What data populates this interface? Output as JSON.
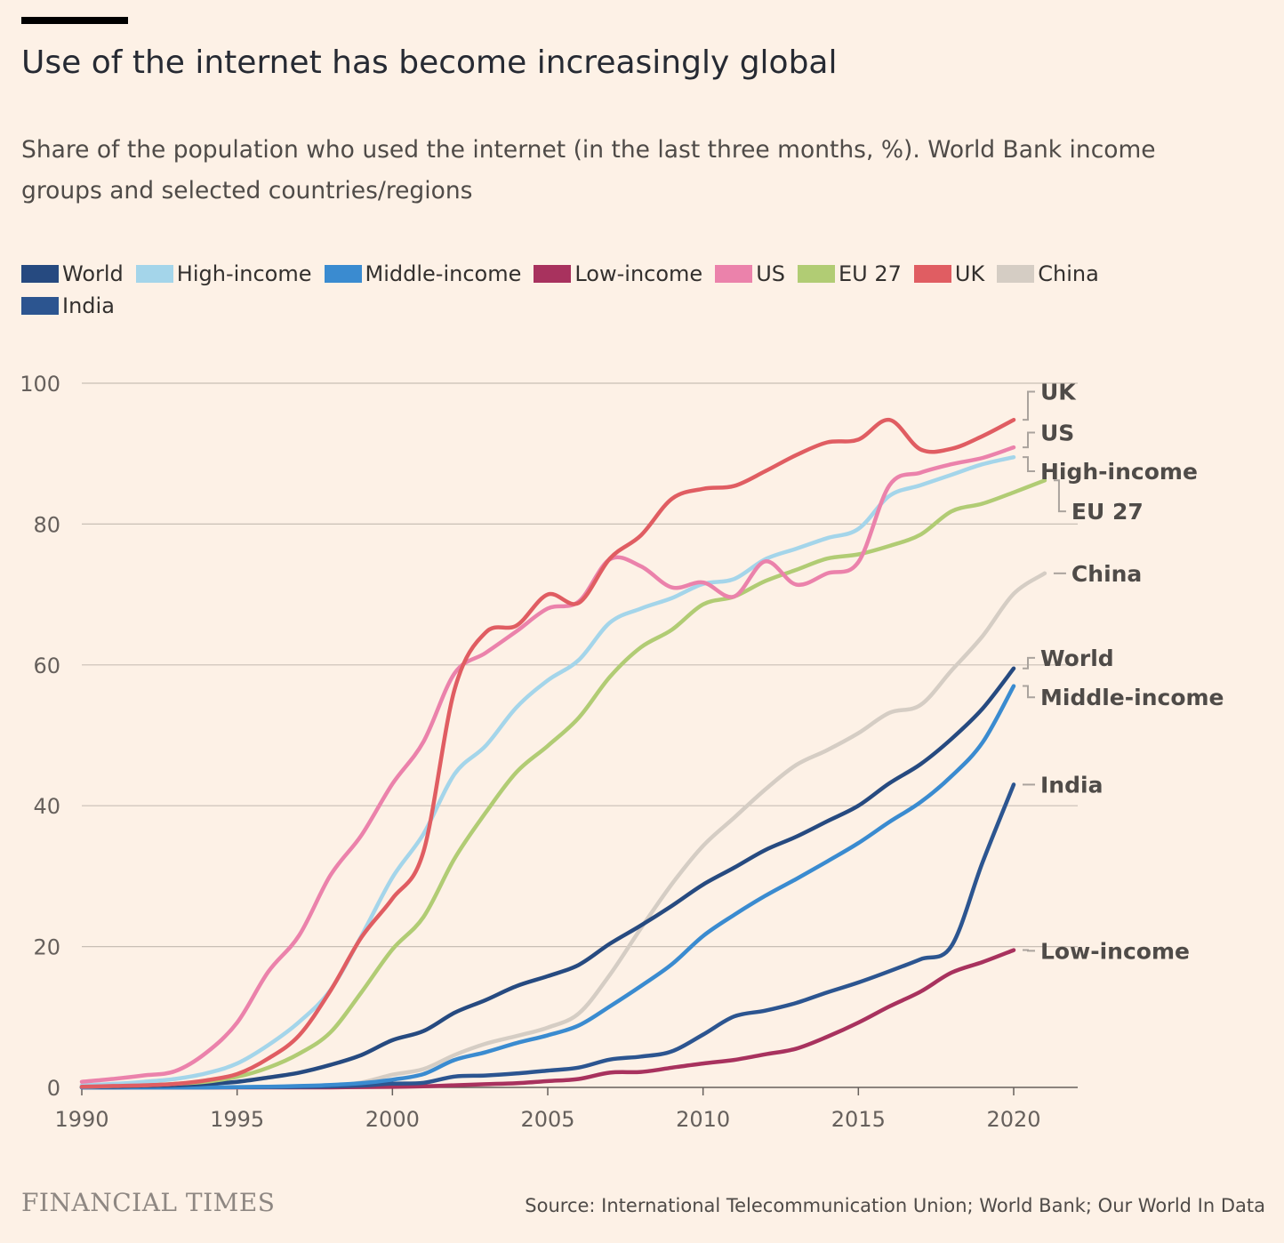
{
  "header": {
    "title": "Use of the internet has become increasingly global",
    "subtitle": "Share of the population who used the internet (in the last three months, %). World Bank income groups and selected countries/regions"
  },
  "footer": {
    "brand": "FINANCIAL TIMES",
    "source": "Source: International Telecommunication Union; World Bank; Our World In Data"
  },
  "chart_data": {
    "type": "line",
    "title": "Use of the internet has become increasingly global",
    "subtitle": "Share of the population who used the internet (in the last three months, %). World Bank income groups and selected countries/regions",
    "xlabel": "",
    "ylabel": "",
    "xlim": [
      1990,
      2022
    ],
    "ylim": [
      0,
      100
    ],
    "x_ticks": [
      1990,
      1995,
      2000,
      2005,
      2010,
      2015,
      2020
    ],
    "y_ticks": [
      0,
      20,
      40,
      60,
      80,
      100
    ],
    "grid": "horizontal",
    "legend_position": "top-left",
    "label_color": "#4f4b48",
    "series": [
      {
        "name": "World",
        "color": "#264a80",
        "label": "World",
        "x": [
          1990,
          1991,
          1992,
          1993,
          1994,
          1995,
          1996,
          1997,
          1998,
          1999,
          2000,
          2001,
          2002,
          2003,
          2004,
          2005,
          2006,
          2007,
          2008,
          2009,
          2010,
          2011,
          2012,
          2013,
          2014,
          2015,
          2016,
          2017,
          2018,
          2019,
          2020
        ],
        "y": [
          0.1,
          0.1,
          0.2,
          0.3,
          0.5,
          0.8,
          1.4,
          2.1,
          3.2,
          4.6,
          6.7,
          8.0,
          10.6,
          12.4,
          14.4,
          15.8,
          17.4,
          20.4,
          23.0,
          25.8,
          28.8,
          31.2,
          33.7,
          35.6,
          37.8,
          40.0,
          43.2,
          45.9,
          49.5,
          53.8,
          59.5
        ]
      },
      {
        "name": "High-income",
        "color": "#a4d5ea",
        "label": "High-income",
        "x": [
          1990,
          1991,
          1992,
          1993,
          1994,
          1995,
          1996,
          1997,
          1998,
          1999,
          2000,
          2001,
          2002,
          2003,
          2004,
          2005,
          2006,
          2007,
          2008,
          2009,
          2010,
          2011,
          2012,
          2013,
          2014,
          2015,
          2016,
          2017,
          2018,
          2019,
          2020
        ],
        "y": [
          0.3,
          0.5,
          0.8,
          1.2,
          2.0,
          3.4,
          6.0,
          9.3,
          13.8,
          21.5,
          29.8,
          36.0,
          44.5,
          48.5,
          54.0,
          57.8,
          60.7,
          66.0,
          68.0,
          69.5,
          71.5,
          72.2,
          75.0,
          76.5,
          78.0,
          79.3,
          84.0,
          85.5,
          87.0,
          88.5,
          89.5
        ]
      },
      {
        "name": "Middle-income",
        "color": "#3a8bd0",
        "label": "Middle-income",
        "x": [
          1990,
          1991,
          1992,
          1993,
          1994,
          1995,
          1996,
          1997,
          1998,
          1999,
          2000,
          2001,
          2002,
          2003,
          2004,
          2005,
          2006,
          2007,
          2008,
          2009,
          2010,
          2011,
          2012,
          2013,
          2014,
          2015,
          2016,
          2017,
          2018,
          2019,
          2020
        ],
        "y": [
          0.0,
          0.0,
          0.0,
          0.0,
          0.0,
          0.05,
          0.1,
          0.2,
          0.35,
          0.6,
          1.1,
          1.9,
          3.9,
          5.0,
          6.3,
          7.4,
          8.8,
          11.5,
          14.4,
          17.5,
          21.5,
          24.5,
          27.2,
          29.6,
          32.1,
          34.7,
          37.7,
          40.5,
          44.2,
          49.0,
          57.0
        ]
      },
      {
        "name": "Low-income",
        "color": "#a8325e",
        "label": "Low-income",
        "x": [
          1990,
          1991,
          1992,
          1993,
          1994,
          1995,
          1996,
          1997,
          1998,
          1999,
          2000,
          2001,
          2002,
          2003,
          2004,
          2005,
          2006,
          2007,
          2008,
          2009,
          2010,
          2011,
          2012,
          2013,
          2014,
          2015,
          2016,
          2017,
          2018,
          2019,
          2020
        ],
        "y": [
          0.0,
          0.0,
          0.0,
          0.0,
          0.0,
          0.0,
          0.0,
          0.0,
          0.0,
          0.05,
          0.08,
          0.15,
          0.3,
          0.45,
          0.6,
          0.9,
          1.2,
          2.1,
          2.2,
          2.8,
          3.4,
          3.9,
          4.7,
          5.5,
          7.2,
          9.2,
          11.5,
          13.6,
          16.3,
          17.8,
          19.5
        ]
      },
      {
        "name": "US",
        "color": "#eb82ab",
        "label": "US",
        "x": [
          1990,
          1991,
          1992,
          1993,
          1994,
          1995,
          1996,
          1997,
          1998,
          1999,
          2000,
          2001,
          2002,
          2003,
          2004,
          2005,
          2006,
          2007,
          2008,
          2009,
          2010,
          2011,
          2012,
          2013,
          2014,
          2015,
          2016,
          2017,
          2018,
          2019,
          2020
        ],
        "y": [
          0.8,
          1.2,
          1.7,
          2.3,
          4.9,
          9.2,
          16.4,
          21.6,
          30.1,
          35.8,
          43.1,
          49.1,
          58.8,
          61.7,
          64.8,
          68.0,
          69.0,
          75.0,
          74.0,
          71.0,
          71.7,
          69.7,
          74.7,
          71.4,
          73.0,
          74.6,
          85.5,
          87.3,
          88.5,
          89.4,
          90.9
        ]
      },
      {
        "name": "EU 27",
        "color": "#b1cc74",
        "label": "EU 27",
        "x": [
          1990,
          1991,
          1992,
          1993,
          1994,
          1995,
          1996,
          1997,
          1998,
          1999,
          2000,
          2001,
          2002,
          2003,
          2004,
          2005,
          2006,
          2007,
          2008,
          2009,
          2010,
          2011,
          2012,
          2013,
          2014,
          2015,
          2016,
          2017,
          2018,
          2019,
          2020,
          2021
        ],
        "y": [
          0.1,
          0.2,
          0.3,
          0.5,
          0.8,
          1.5,
          2.8,
          4.8,
          7.8,
          13.5,
          19.6,
          24.2,
          32.5,
          39.0,
          44.8,
          48.5,
          52.5,
          58.3,
          62.5,
          65.0,
          68.6,
          69.7,
          71.9,
          73.5,
          75.1,
          75.7,
          76.9,
          78.5,
          81.8,
          82.9,
          84.5,
          86.2
        ]
      },
      {
        "name": "UK",
        "color": "#e05d62",
        "label": "UK",
        "x": [
          1990,
          1991,
          1992,
          1993,
          1994,
          1995,
          1996,
          1997,
          1998,
          1999,
          2000,
          2001,
          2002,
          2003,
          2004,
          2005,
          2006,
          2007,
          2008,
          2009,
          2010,
          2011,
          2012,
          2013,
          2014,
          2015,
          2016,
          2017,
          2018,
          2019,
          2020
        ],
        "y": [
          0.1,
          0.2,
          0.3,
          0.5,
          1.0,
          1.9,
          4.1,
          7.4,
          13.7,
          21.3,
          26.8,
          33.5,
          56.5,
          64.6,
          65.6,
          70.0,
          68.8,
          75.1,
          78.4,
          83.6,
          85.0,
          85.4,
          87.5,
          89.8,
          91.6,
          92.0,
          94.8,
          90.6,
          90.7,
          92.5,
          94.8
        ]
      },
      {
        "name": "China",
        "color": "#d5cdc4",
        "label": "China",
        "x": [
          1990,
          1991,
          1992,
          1993,
          1994,
          1995,
          1996,
          1997,
          1998,
          1999,
          2000,
          2001,
          2002,
          2003,
          2004,
          2005,
          2006,
          2007,
          2008,
          2009,
          2010,
          2011,
          2012,
          2013,
          2014,
          2015,
          2016,
          2017,
          2018,
          2019,
          2020,
          2021
        ],
        "y": [
          0.0,
          0.0,
          0.0,
          0.0,
          0.0,
          0.0,
          0.01,
          0.03,
          0.2,
          0.7,
          1.8,
          2.6,
          4.6,
          6.2,
          7.3,
          8.5,
          10.5,
          16.0,
          22.6,
          28.9,
          34.3,
          38.3,
          42.3,
          45.8,
          47.9,
          50.3,
          53.2,
          54.3,
          59.2,
          64.1,
          70.1,
          73.0
        ]
      },
      {
        "name": "India",
        "color": "#2c5590",
        "label": "India",
        "x": [
          1990,
          1991,
          1992,
          1993,
          1994,
          1995,
          1996,
          1997,
          1998,
          1999,
          2000,
          2001,
          2002,
          2003,
          2004,
          2005,
          2006,
          2007,
          2008,
          2009,
          2010,
          2011,
          2012,
          2013,
          2014,
          2015,
          2016,
          2017,
          2018,
          2019,
          2020
        ],
        "y": [
          0.0,
          0.0,
          0.0,
          0.0,
          0.0,
          0.03,
          0.05,
          0.07,
          0.14,
          0.27,
          0.53,
          0.66,
          1.54,
          1.69,
          1.98,
          2.39,
          2.81,
          3.95,
          4.38,
          5.12,
          7.5,
          10.07,
          10.9,
          12.0,
          13.5,
          14.9,
          16.5,
          18.2,
          20.1,
          32.0,
          43.0
        ]
      }
    ],
    "end_labels": [
      {
        "text": "UK",
        "series": "UK",
        "label_y": 98.8
      },
      {
        "text": "US",
        "series": "US",
        "label_y": 93.0
      },
      {
        "text": "High-income",
        "series": "High-income",
        "label_y": 87.5
      },
      {
        "text": "EU 27",
        "series": "EU 27",
        "label_y": 81.8
      },
      {
        "text": "China",
        "series": "China",
        "label_y": 73.0
      },
      {
        "text": "World",
        "series": "World",
        "label_y": 61.0
      },
      {
        "text": "Middle-income",
        "series": "Middle-income",
        "label_y": 55.4
      },
      {
        "text": "India",
        "series": "India",
        "label_y": 43.0
      },
      {
        "text": "Low-income",
        "series": "Low-income",
        "label_y": 19.4
      }
    ]
  }
}
